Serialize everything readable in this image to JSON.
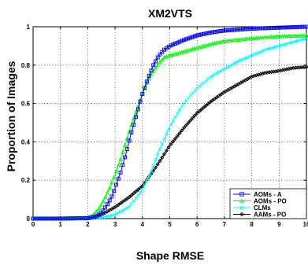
{
  "chart_data": {
    "type": "line",
    "title": "XM2VTS",
    "xlabel": "Shape RMSE",
    "ylabel": "Proportion of Images",
    "xlim": [
      0,
      10
    ],
    "ylim": [
      0,
      1
    ],
    "xticks": [
      0,
      1,
      2,
      3,
      4,
      5,
      6,
      7,
      8,
      9,
      10
    ],
    "yticks": [
      0,
      0.2,
      0.4,
      0.6,
      0.8,
      1
    ],
    "grid": "dotted",
    "legend_position": "bottom-right",
    "series": [
      {
        "name": "AOMs - A",
        "color": "#0000ff",
        "marker": "square",
        "x": [
          0,
          1,
          2,
          2.3,
          2.5,
          2.7,
          2.9,
          3.0,
          3.2,
          3.4,
          3.6,
          3.8,
          4.0,
          4.2,
          4.4,
          4.6,
          4.8,
          5.0,
          5.5,
          6.0,
          6.5,
          7,
          8,
          9,
          10
        ],
        "y": [
          0,
          0,
          0.003,
          0.01,
          0.03,
          0.07,
          0.12,
          0.16,
          0.24,
          0.34,
          0.45,
          0.55,
          0.65,
          0.73,
          0.8,
          0.85,
          0.88,
          0.9,
          0.93,
          0.955,
          0.97,
          0.98,
          0.99,
          0.995,
          1.0
        ]
      },
      {
        "name": "AOMs - PO",
        "color": "#00ff00",
        "marker": "triangle",
        "x": [
          0,
          1,
          2,
          2.2,
          2.4,
          2.6,
          2.8,
          3.0,
          3.2,
          3.4,
          3.6,
          3.8,
          4.0,
          4.2,
          4.4,
          4.6,
          4.8,
          5.0,
          5.5,
          6.0,
          6.5,
          7,
          8,
          9,
          10
        ],
        "y": [
          0,
          0,
          0.003,
          0.02,
          0.05,
          0.1,
          0.16,
          0.23,
          0.31,
          0.4,
          0.49,
          0.57,
          0.65,
          0.72,
          0.77,
          0.81,
          0.84,
          0.85,
          0.87,
          0.89,
          0.91,
          0.925,
          0.94,
          0.95,
          0.955
        ]
      },
      {
        "name": "CLMs",
        "color": "#00ffff",
        "marker": "x",
        "x": [
          0,
          1,
          2,
          2.5,
          3.0,
          3.5,
          4.0,
          4.3,
          4.6,
          5.0,
          5.5,
          6.0,
          6.5,
          7,
          7.5,
          8,
          8.5,
          9,
          9.5,
          10
        ],
        "y": [
          0,
          0,
          0.0,
          0.005,
          0.02,
          0.06,
          0.15,
          0.24,
          0.35,
          0.48,
          0.6,
          0.68,
          0.74,
          0.78,
          0.82,
          0.85,
          0.88,
          0.9,
          0.92,
          0.94
        ]
      },
      {
        "name": "AAMs - PO",
        "color": "#000000",
        "marker": "diamond",
        "x": [
          0,
          1,
          2,
          2.5,
          3.0,
          3.5,
          4.0,
          4.5,
          5.0,
          5.5,
          6.0,
          6.5,
          7,
          7.5,
          8,
          8.5,
          9,
          9.5,
          10
        ],
        "y": [
          0,
          0,
          0.0,
          0.02,
          0.06,
          0.11,
          0.17,
          0.27,
          0.38,
          0.47,
          0.55,
          0.61,
          0.66,
          0.7,
          0.74,
          0.76,
          0.77,
          0.785,
          0.79
        ]
      }
    ]
  }
}
